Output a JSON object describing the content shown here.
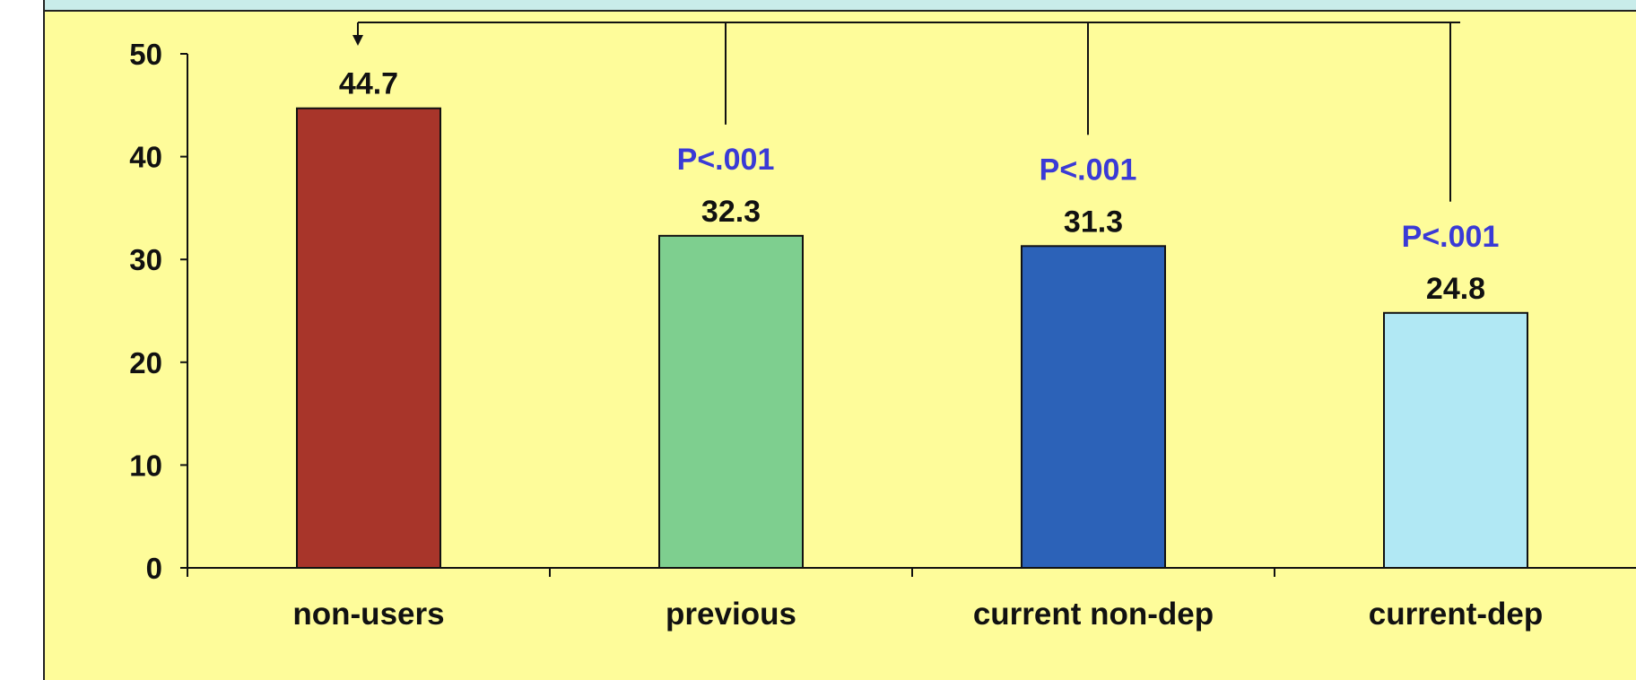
{
  "colors": {
    "background": "#fefc9a",
    "header_band": "#c9ecea",
    "axis": "#111111",
    "p_value_text": "#3a3ad6"
  },
  "chart_data": {
    "type": "bar",
    "title": "",
    "xlabel": "",
    "ylabel": "",
    "ylim": [
      0,
      50
    ],
    "yticks": [
      0,
      10,
      20,
      30,
      40,
      50
    ],
    "categories": [
      "non-users",
      "previous",
      "current non-dep",
      "current-dep"
    ],
    "values": [
      44.7,
      32.3,
      31.3,
      24.8
    ],
    "value_labels": [
      "44.7",
      "32.3",
      "31.3",
      "24.8"
    ],
    "bar_colors": [
      "#a8352a",
      "#7ecf8f",
      "#2c62b8",
      "#b1e8f4"
    ],
    "comparison_reference": "non-users",
    "annotations": [
      {
        "category": "previous",
        "text": "P<.001"
      },
      {
        "category": "current non-dep",
        "text": "P<.001"
      },
      {
        "category": "current-dep",
        "text": "P<.001"
      }
    ],
    "grid": false,
    "legend": "none"
  }
}
